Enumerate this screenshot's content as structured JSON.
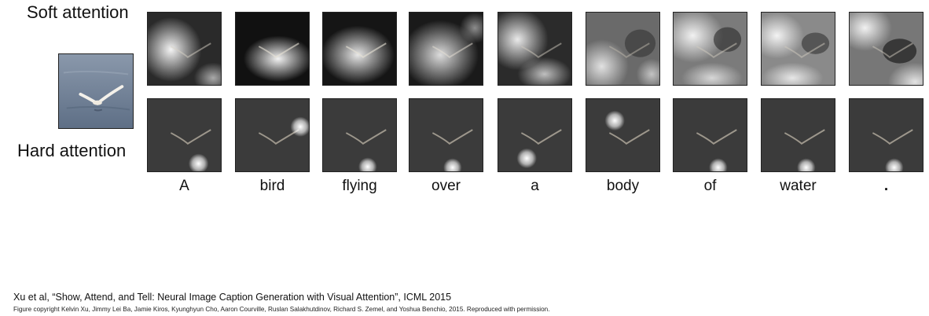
{
  "labels": {
    "soft": "Soft attention",
    "hard": "Hard attention"
  },
  "caption_words": [
    "A",
    "bird",
    "flying",
    "over",
    "a",
    "body",
    "of",
    "water",
    "."
  ],
  "citation": "Xu et al, “Show, Attend, and Tell: Neural Image Caption Generation with Visual Attention”, ICML 2015",
  "copyright": "Figure copyright Kelvin Xu, Jimmy Lei Ba, Jamie Kiros, Kyunghyun Cho, Aaron Courville, Ruslan Salakhutdinov, Richard S. Zemel, and Yoshua Benchio, 2015. Reproduced with permission.",
  "colors": {
    "water": "#6f7f96",
    "dark_bg": "#3b3b3b",
    "soft_bg": "#1e1e1e"
  }
}
